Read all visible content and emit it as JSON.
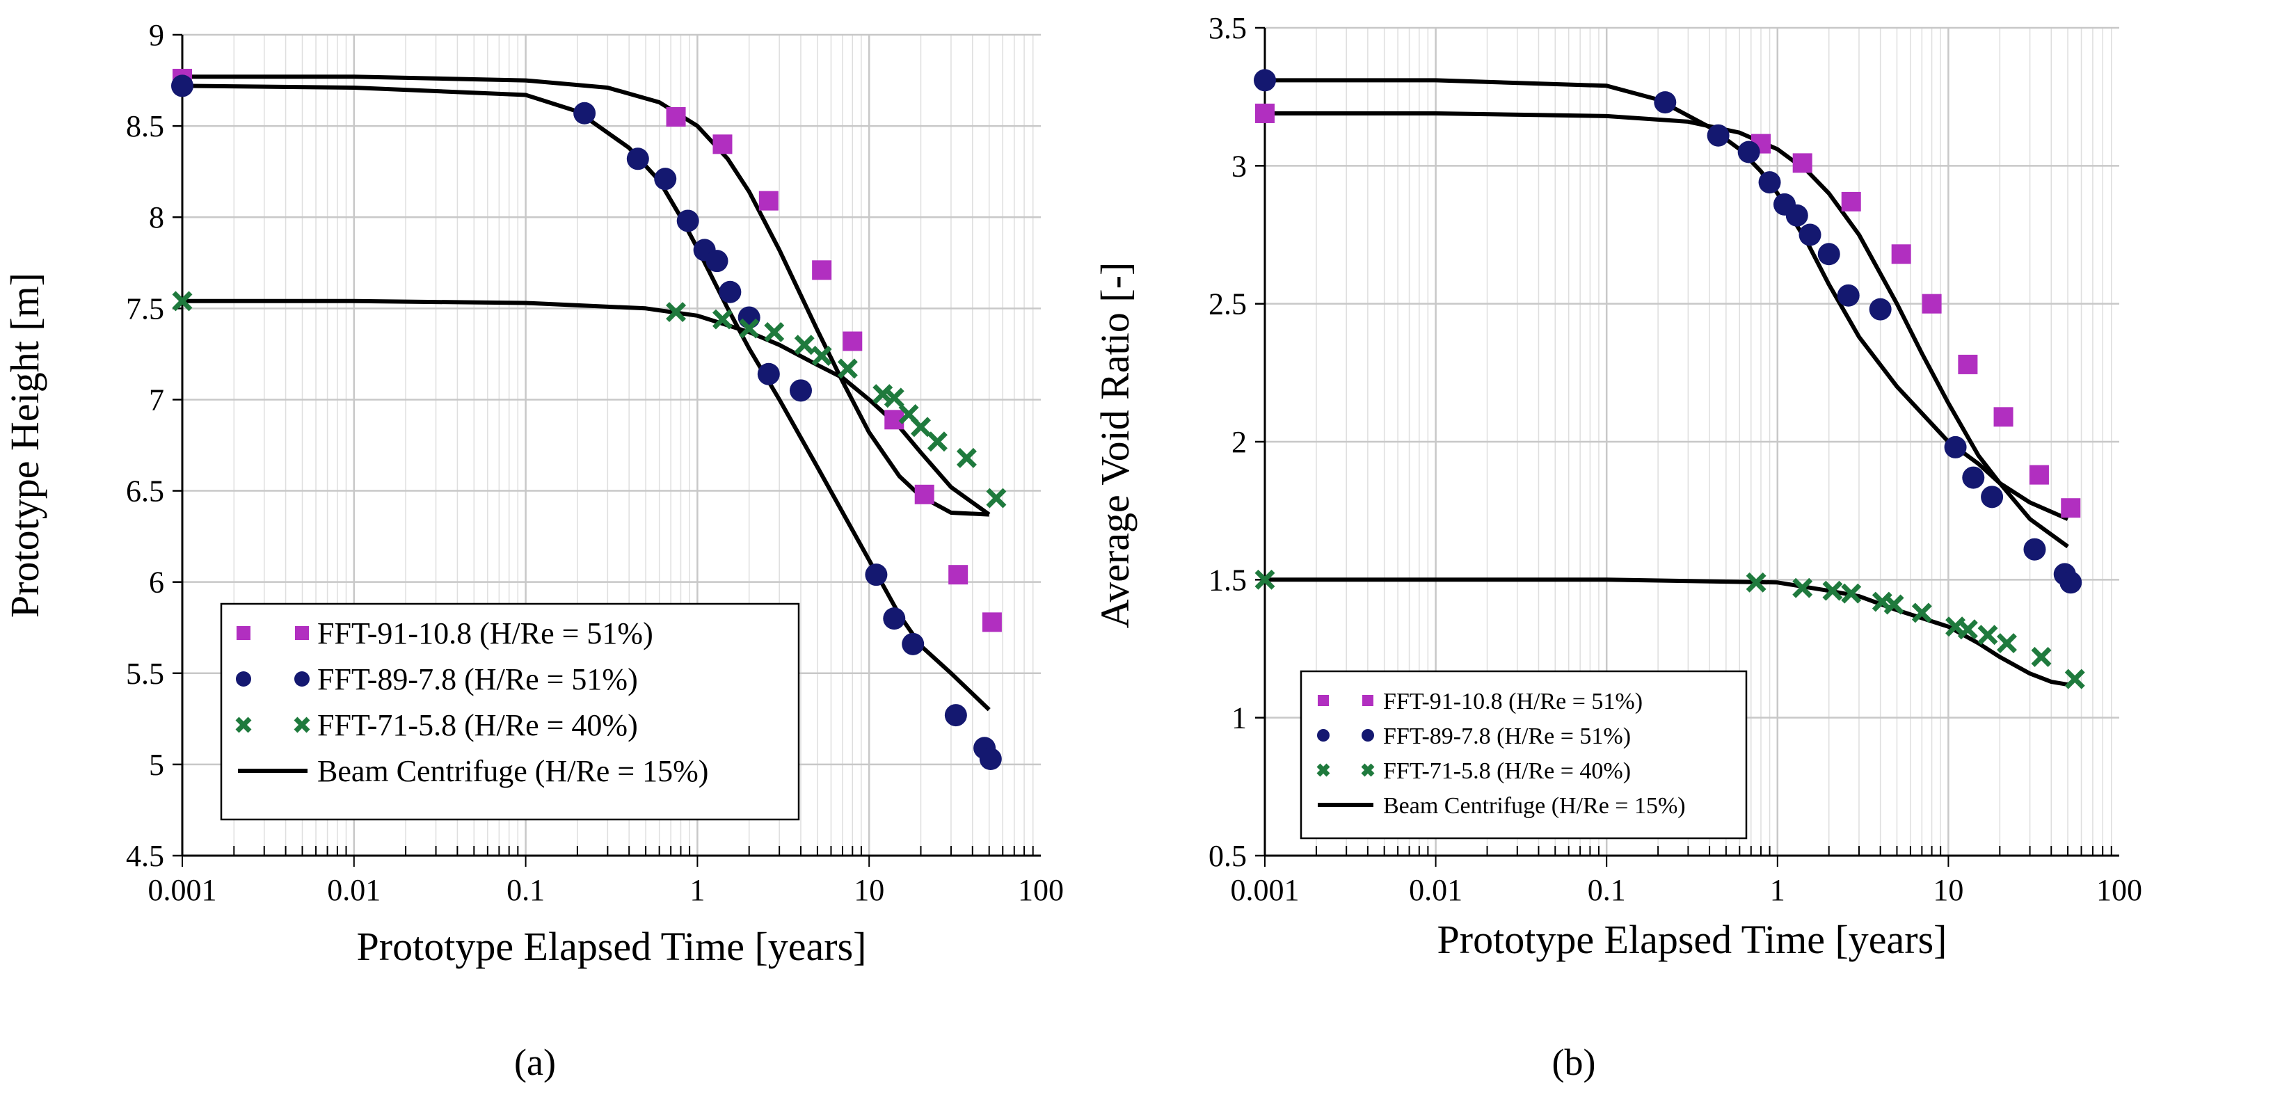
{
  "chart_data": [
    {
      "type": "scatter",
      "panel": "(a)",
      "xscale": "log",
      "xlim": [
        0.001,
        100
      ],
      "ylim": [
        4.5,
        9
      ],
      "xlabel": "Prototype Elapsed Time [years]",
      "ylabel": "Prototype Height [m]",
      "x_ticks": [
        0.001,
        0.01,
        0.1,
        1,
        10,
        100
      ],
      "x_tick_labels": [
        "0.001",
        "0.01",
        "0.1",
        "1",
        "10",
        "100"
      ],
      "y_ticks": [
        4.5,
        5,
        5.5,
        6,
        6.5,
        7,
        7.5,
        8,
        8.5,
        9
      ],
      "y_tick_labels": [
        "4.5",
        "5",
        "5.5",
        "6",
        "6.5",
        "7",
        "7.5",
        "8",
        "8.5",
        "9"
      ],
      "grid": true,
      "legend_position": "bottom-left",
      "series": [
        {
          "name": "FFT-91-10.8 (H/Re = 51%)",
          "marker": "square",
          "color": "#b12fc0",
          "x": [
            0.001,
            0.75,
            1.4,
            2.6,
            5.3,
            8,
            14,
            21,
            33,
            52
          ],
          "y": [
            8.76,
            8.55,
            8.4,
            8.09,
            7.71,
            7.32,
            6.89,
            6.48,
            6.04,
            5.78
          ]
        },
        {
          "name": "FFT-89-7.8 (H/Re = 51%)",
          "marker": "circle",
          "color": "#141870",
          "x": [
            0.001,
            0.22,
            0.45,
            0.65,
            0.88,
            1.1,
            1.3,
            1.55,
            2.0,
            2.6,
            4.0,
            11,
            14,
            18,
            32,
            47,
            51
          ],
          "y": [
            8.72,
            8.57,
            8.32,
            8.21,
            7.98,
            7.82,
            7.76,
            7.59,
            7.45,
            7.14,
            7.05,
            6.04,
            5.8,
            5.66,
            5.27,
            5.09,
            5.03
          ]
        },
        {
          "name": "FFT-71-5.8 (H/Re = 40%)",
          "marker": "cross",
          "color": "#1f7a3d",
          "x": [
            0.001,
            0.75,
            1.4,
            2.0,
            2.8,
            4.2,
            5.3,
            7.5,
            12,
            14,
            17,
            20,
            25,
            37,
            55
          ],
          "y": [
            7.54,
            7.48,
            7.44,
            7.39,
            7.37,
            7.3,
            7.24,
            7.17,
            7.03,
            7.01,
            6.92,
            6.85,
            6.77,
            6.68,
            6.46
          ]
        },
        {
          "name": "Beam Centrifuge (H/Re = 15%)",
          "marker": "line",
          "color": "#000000",
          "curves": [
            {
              "x": [
                0.001,
                0.01,
                0.1,
                0.3,
                0.6,
                1,
                1.5,
                2,
                3,
                5,
                7,
                10,
                15,
                20,
                30,
                50
              ],
              "y": [
                8.77,
                8.77,
                8.75,
                8.71,
                8.63,
                8.5,
                8.32,
                8.14,
                7.82,
                7.38,
                7.1,
                6.82,
                6.58,
                6.47,
                6.38,
                6.37
              ]
            },
            {
              "x": [
                0.001,
                0.01,
                0.1,
                0.2,
                0.4,
                0.6,
                0.8,
                1,
                1.5,
                2,
                3,
                5,
                10,
                15,
                20,
                30,
                50
              ],
              "y": [
                8.72,
                8.71,
                8.67,
                8.58,
                8.38,
                8.2,
                8.0,
                7.83,
                7.5,
                7.28,
                7.0,
                6.63,
                6.12,
                5.82,
                5.65,
                5.5,
                5.3
              ]
            },
            {
              "x": [
                0.001,
                0.01,
                0.1,
                0.5,
                1,
                2,
                3,
                5,
                7,
                10,
                15,
                20,
                30,
                50
              ],
              "y": [
                7.54,
                7.54,
                7.53,
                7.5,
                7.46,
                7.37,
                7.3,
                7.19,
                7.12,
                7.0,
                6.85,
                6.71,
                6.52,
                6.37
              ]
            }
          ]
        }
      ],
      "caption": "(a)"
    },
    {
      "type": "scatter",
      "panel": "(b)",
      "xscale": "log",
      "xlim": [
        0.001,
        100
      ],
      "ylim": [
        0.5,
        3.5
      ],
      "xlabel": "Prototype Elapsed Time [years]",
      "ylabel": "Average Void Ratio [-]",
      "x_ticks": [
        0.001,
        0.01,
        0.1,
        1,
        10,
        100
      ],
      "x_tick_labels": [
        "0.001",
        "0.01",
        "0.1",
        "1",
        "10",
        "100"
      ],
      "y_ticks": [
        0.5,
        1,
        1.5,
        2,
        2.5,
        3,
        3.5
      ],
      "y_tick_labels": [
        "0.5",
        "1",
        "1.5",
        "2",
        "2.5",
        "3",
        "3.5"
      ],
      "grid": true,
      "legend_position": "bottom-left",
      "series": [
        {
          "name": "FFT-91-10.8 (H/Re = 51%)",
          "marker": "square",
          "color": "#b12fc0",
          "x": [
            0.001,
            0.8,
            1.4,
            2.7,
            5.3,
            8,
            13,
            21,
            34,
            52
          ],
          "y": [
            3.19,
            3.08,
            3.01,
            2.87,
            2.68,
            2.5,
            2.28,
            2.09,
            1.88,
            1.76
          ]
        },
        {
          "name": "FFT-89-7.8 (H/Re = 51%)",
          "marker": "circle",
          "color": "#141870",
          "x": [
            0.001,
            0.22,
            0.45,
            0.68,
            0.9,
            1.1,
            1.3,
            1.55,
            2.0,
            2.6,
            4.0,
            11,
            14,
            18,
            32,
            48,
            52
          ],
          "y": [
            3.31,
            3.23,
            3.11,
            3.05,
            2.94,
            2.86,
            2.82,
            2.75,
            2.68,
            2.53,
            2.48,
            1.98,
            1.87,
            1.8,
            1.61,
            1.52,
            1.49
          ]
        },
        {
          "name": "FFT-71-5.8 (H/Re = 40%)",
          "marker": "cross",
          "color": "#1f7a3d",
          "x": [
            0.001,
            0.75,
            1.4,
            2.1,
            2.7,
            4.1,
            4.8,
            7.0,
            11,
            13,
            17,
            22,
            35,
            55
          ],
          "y": [
            1.5,
            1.49,
            1.47,
            1.46,
            1.45,
            1.42,
            1.41,
            1.38,
            1.33,
            1.32,
            1.3,
            1.27,
            1.22,
            1.14
          ]
        },
        {
          "name": "Beam Centrifuge (H/Re = 15%)",
          "marker": "line",
          "color": "#000000",
          "curves": [
            {
              "x": [
                0.001,
                0.01,
                0.1,
                0.3,
                0.6,
                1,
                1.5,
                2,
                3,
                5,
                7,
                10,
                15,
                20,
                30,
                50
              ],
              "y": [
                3.19,
                3.19,
                3.18,
                3.16,
                3.12,
                3.06,
                2.98,
                2.9,
                2.75,
                2.5,
                2.32,
                2.14,
                1.95,
                1.85,
                1.72,
                1.62
              ]
            },
            {
              "x": [
                0.001,
                0.01,
                0.1,
                0.2,
                0.4,
                0.6,
                0.8,
                1,
                1.5,
                2,
                3,
                5,
                10,
                15,
                20,
                30,
                50
              ],
              "y": [
                3.31,
                3.31,
                3.29,
                3.24,
                3.14,
                3.06,
                2.98,
                2.9,
                2.72,
                2.57,
                2.38,
                2.2,
                2.0,
                1.92,
                1.85,
                1.78,
                1.72
              ]
            },
            {
              "x": [
                0.001,
                0.01,
                0.1,
                1,
                2,
                3,
                5,
                10,
                15,
                20,
                30,
                40,
                50
              ],
              "y": [
                1.5,
                1.5,
                1.5,
                1.49,
                1.46,
                1.44,
                1.39,
                1.33,
                1.27,
                1.22,
                1.16,
                1.13,
                1.12
              ]
            }
          ]
        }
      ],
      "caption": "(b)"
    }
  ]
}
